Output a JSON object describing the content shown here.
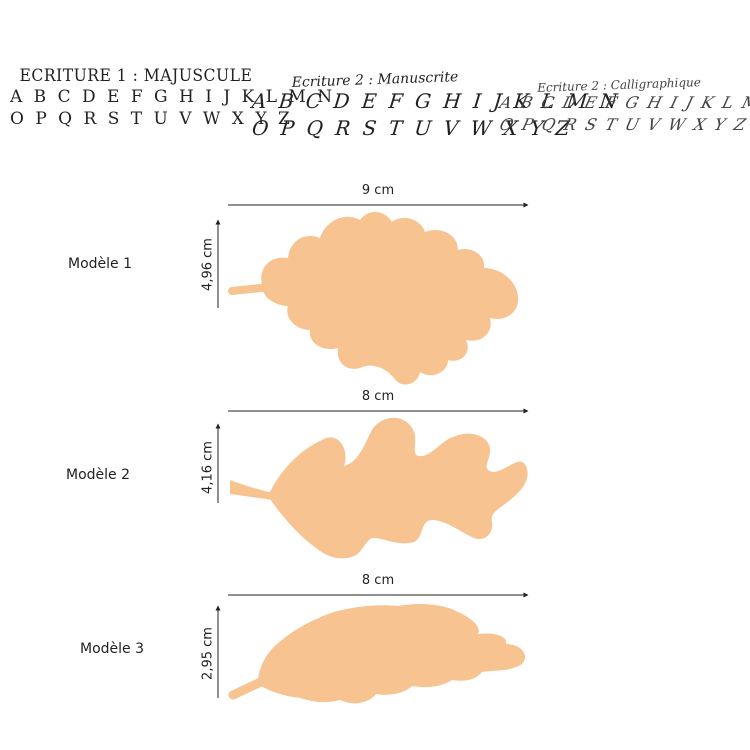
{
  "styles": [
    {
      "title": "ECRITURE 1 : MAJUSCULE",
      "line1": "A B C D E F G H I J K L M N",
      "line2": "O P Q R S T U V W X Y Z"
    },
    {
      "title": "Ecriture 2 : Manuscrite",
      "line1": "A B C D E F G H I J K L M N",
      "line2": "O P Q R S T U V W X Y Z"
    },
    {
      "title": "Ecriture 2 : Calligraphique",
      "line1": "A B C D E F G H I J K L M N",
      "line2": "O P Q R S T U V W X Y Z"
    }
  ],
  "models": [
    {
      "label": "Modèle 1",
      "width": "9 cm",
      "height": "4,96 cm"
    },
    {
      "label": "Modèle 2",
      "width": "8 cm",
      "height": "4,16 cm"
    },
    {
      "label": "Modèle 3",
      "width": "8 cm",
      "height": "2,95 cm"
    }
  ],
  "colors": {
    "leaf": "#F7C391",
    "line": "#222222"
  }
}
